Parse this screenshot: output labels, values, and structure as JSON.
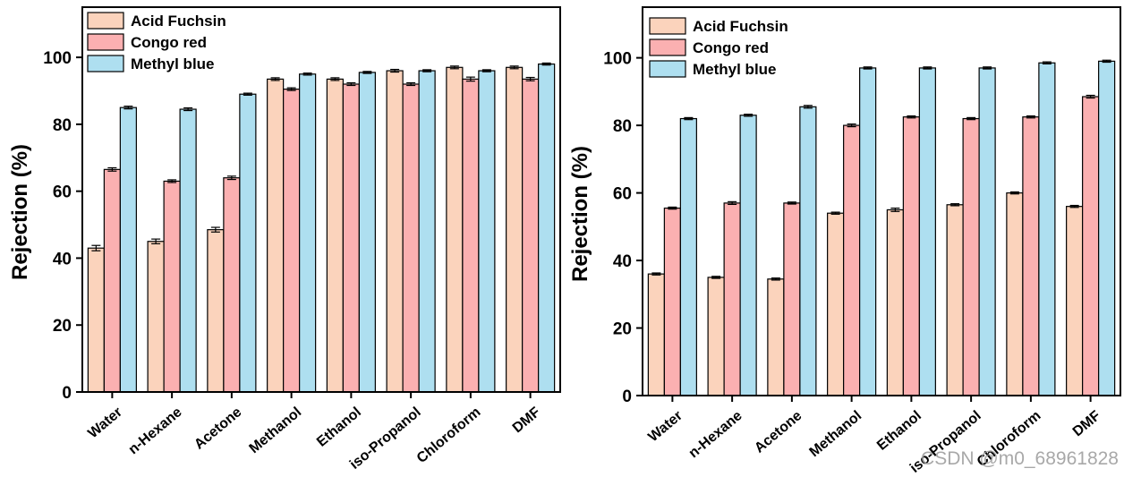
{
  "colors": {
    "acid_fuchsin": "#FBD3BC",
    "congo_red": "#FBB0B1",
    "methyl_blue": "#AEDFF0"
  },
  "watermark": "CSDN @m0_68961828",
  "chart_data": [
    {
      "type": "bar",
      "title": "",
      "xlabel": "",
      "ylabel": "Rejection (%)",
      "ylim": [
        0,
        115
      ],
      "yticks": [
        0,
        20,
        40,
        60,
        80,
        100
      ],
      "legend_position": "top-left",
      "categories": [
        "Water",
        "n-Hexane",
        "Acetone",
        "Methanol",
        "Ethanol",
        "iso-Propanol",
        "Chloroform",
        "DMF"
      ],
      "series": [
        {
          "name": "Acid Fuchsin",
          "values": [
            43,
            45,
            48.5,
            93.5,
            93.5,
            96,
            97,
            97
          ],
          "errors": [
            0.8,
            0.7,
            0.7,
            0.4,
            0.4,
            0.4,
            0.4,
            0.4
          ]
        },
        {
          "name": "Congo red",
          "values": [
            66.5,
            63,
            64,
            90.5,
            92,
            92,
            93.5,
            93.5
          ],
          "errors": [
            0.5,
            0.4,
            0.5,
            0.4,
            0.4,
            0.4,
            0.6,
            0.5
          ]
        },
        {
          "name": "Methyl blue",
          "values": [
            85,
            84.5,
            89,
            95,
            95.5,
            96,
            96,
            98
          ],
          "errors": [
            0.4,
            0.4,
            0.3,
            0.3,
            0.3,
            0.3,
            0.3,
            0.3
          ]
        }
      ]
    },
    {
      "type": "bar",
      "title": "",
      "xlabel": "",
      "ylabel": "Rejection (%)",
      "ylim": [
        0,
        115
      ],
      "yticks": [
        0,
        20,
        40,
        60,
        80,
        100
      ],
      "legend_position": "top-left",
      "categories": [
        "Water",
        "n-Hexane",
        "Acetone",
        "Methanol",
        "Ethanol",
        "iso-Propanol",
        "Chloroform",
        "DMF"
      ],
      "series": [
        {
          "name": "Acid Fuchsin",
          "values": [
            36,
            35,
            34.5,
            54,
            55,
            56.5,
            60,
            56
          ],
          "errors": [
            0.3,
            0.3,
            0.3,
            0.3,
            0.5,
            0.3,
            0.3,
            0.3
          ]
        },
        {
          "name": "Congo red",
          "values": [
            55.5,
            57,
            57,
            80,
            82.5,
            82,
            82.5,
            88.5
          ],
          "errors": [
            0.3,
            0.4,
            0.3,
            0.4,
            0.3,
            0.3,
            0.3,
            0.4
          ]
        },
        {
          "name": "Methyl blue",
          "values": [
            82,
            83,
            85.5,
            97,
            97,
            97,
            98.5,
            99
          ],
          "errors": [
            0.3,
            0.3,
            0.4,
            0.3,
            0.3,
            0.3,
            0.3,
            0.3
          ]
        }
      ]
    }
  ]
}
